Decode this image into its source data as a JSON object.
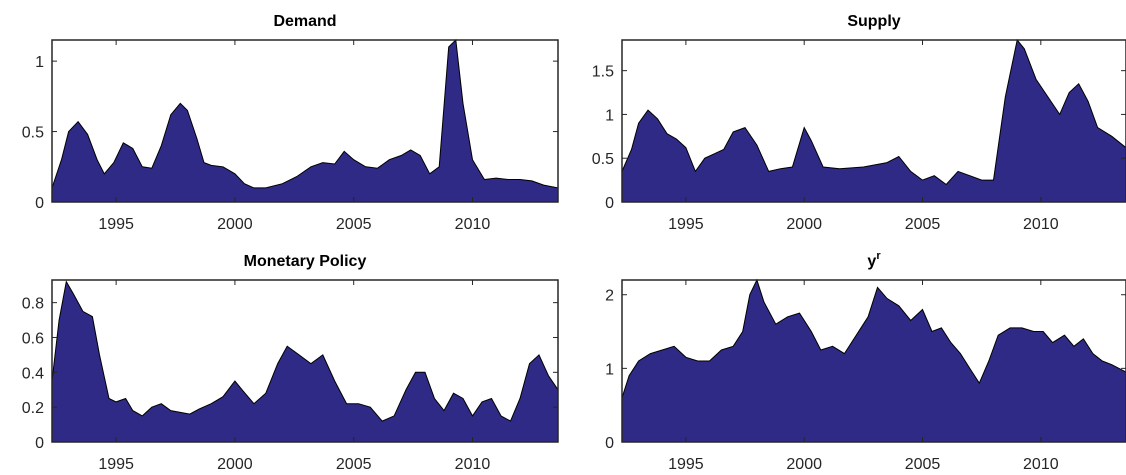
{
  "colors": {
    "fill": "#2e2a86",
    "axis": "#262626",
    "background": "#ffffff"
  },
  "chart_data": [
    {
      "type": "area",
      "title": "Demand",
      "xlabel": "",
      "ylabel": "",
      "xlim": [
        1992.3,
        2013.6
      ],
      "ylim": [
        0,
        1.15
      ],
      "xticks": [
        1995,
        2000,
        2005,
        2010
      ],
      "yticks": [
        0,
        0.5,
        1
      ],
      "ytick_labels": [
        "0",
        "0.5",
        "1"
      ],
      "x": [
        1992.3,
        1992.7,
        1993.0,
        1993.4,
        1993.8,
        1994.2,
        1994.5,
        1994.9,
        1995.3,
        1995.7,
        1996.1,
        1996.5,
        1996.9,
        1997.3,
        1997.7,
        1998.0,
        1998.4,
        1998.7,
        1999.0,
        1999.5,
        2000.0,
        2000.4,
        2000.8,
        2001.3,
        2002.0,
        2002.6,
        2003.2,
        2003.7,
        2004.2,
        2004.6,
        2005.0,
        2005.5,
        2006.0,
        2006.5,
        2007.0,
        2007.4,
        2007.8,
        2008.2,
        2008.6,
        2009.0,
        2009.3,
        2009.6,
        2010.0,
        2010.5,
        2011.0,
        2011.5,
        2012.0,
        2012.5,
        2013.0,
        2013.6
      ],
      "y": [
        0.1,
        0.3,
        0.5,
        0.57,
        0.48,
        0.3,
        0.2,
        0.28,
        0.42,
        0.38,
        0.25,
        0.24,
        0.4,
        0.62,
        0.7,
        0.65,
        0.45,
        0.28,
        0.26,
        0.25,
        0.2,
        0.13,
        0.1,
        0.1,
        0.13,
        0.18,
        0.25,
        0.28,
        0.27,
        0.36,
        0.3,
        0.25,
        0.24,
        0.3,
        0.33,
        0.37,
        0.33,
        0.2,
        0.25,
        1.1,
        1.15,
        0.7,
        0.3,
        0.16,
        0.17,
        0.16,
        0.16,
        0.15,
        0.12,
        0.1
      ]
    },
    {
      "type": "area",
      "title": "Supply",
      "xlabel": "",
      "ylabel": "",
      "xlim": [
        1992.3,
        2013.6
      ],
      "ylim": [
        0,
        1.85
      ],
      "xticks": [
        1995,
        2000,
        2005,
        2010
      ],
      "yticks": [
        0,
        0.5,
        1,
        1.5
      ],
      "ytick_labels": [
        "0",
        "0.5",
        "1",
        "1.5"
      ],
      "x": [
        1992.3,
        1992.7,
        1993.0,
        1993.4,
        1993.8,
        1994.2,
        1994.6,
        1995.0,
        1995.4,
        1995.8,
        1996.2,
        1996.6,
        1997.0,
        1997.5,
        1998.0,
        1998.5,
        1999.0,
        1999.5,
        2000.0,
        2000.3,
        2000.8,
        2001.5,
        2002.5,
        2003.5,
        2004.0,
        2004.5,
        2005.0,
        2005.5,
        2006.0,
        2006.5,
        2007.0,
        2007.5,
        2008.0,
        2008.5,
        2009.0,
        2009.3,
        2009.8,
        2010.3,
        2010.8,
        2011.2,
        2011.6,
        2012.0,
        2012.4,
        2013.0,
        2013.6
      ],
      "y": [
        0.35,
        0.6,
        0.9,
        1.05,
        0.95,
        0.78,
        0.72,
        0.62,
        0.35,
        0.5,
        0.55,
        0.6,
        0.8,
        0.85,
        0.65,
        0.35,
        0.38,
        0.4,
        0.85,
        0.7,
        0.4,
        0.38,
        0.4,
        0.45,
        0.52,
        0.35,
        0.25,
        0.3,
        0.2,
        0.35,
        0.3,
        0.25,
        0.25,
        1.2,
        1.85,
        1.75,
        1.4,
        1.2,
        1.0,
        1.25,
        1.35,
        1.15,
        0.85,
        0.75,
        0.62
      ]
    },
    {
      "type": "area",
      "title": "Monetary Policy",
      "xlabel": "",
      "ylabel": "",
      "xlim": [
        1992.3,
        2013.6
      ],
      "ylim": [
        0,
        0.93
      ],
      "xticks": [
        1995,
        2000,
        2005,
        2010
      ],
      "yticks": [
        0,
        0.2,
        0.4,
        0.6,
        0.8
      ],
      "ytick_labels": [
        "0",
        "0.2",
        "0.4",
        "0.6",
        "0.8"
      ],
      "x": [
        1992.3,
        1992.6,
        1992.9,
        1993.2,
        1993.6,
        1994.0,
        1994.3,
        1994.7,
        1995.0,
        1995.4,
        1995.7,
        1996.1,
        1996.5,
        1996.9,
        1997.3,
        1997.7,
        1998.1,
        1998.5,
        1999.0,
        1999.5,
        2000.0,
        2000.3,
        2000.8,
        2001.3,
        2001.8,
        2002.2,
        2002.7,
        2003.2,
        2003.7,
        2004.2,
        2004.7,
        2005.2,
        2005.7,
        2006.2,
        2006.7,
        2007.2,
        2007.6,
        2008.0,
        2008.4,
        2008.8,
        2009.2,
        2009.6,
        2010.0,
        2010.4,
        2010.8,
        2011.2,
        2011.6,
        2012.0,
        2012.4,
        2012.8,
        2013.2,
        2013.6
      ],
      "y": [
        0.35,
        0.7,
        0.92,
        0.85,
        0.75,
        0.72,
        0.5,
        0.25,
        0.23,
        0.25,
        0.18,
        0.15,
        0.2,
        0.22,
        0.18,
        0.17,
        0.16,
        0.19,
        0.22,
        0.26,
        0.35,
        0.3,
        0.22,
        0.28,
        0.45,
        0.55,
        0.5,
        0.45,
        0.5,
        0.35,
        0.22,
        0.22,
        0.2,
        0.12,
        0.15,
        0.3,
        0.4,
        0.4,
        0.25,
        0.18,
        0.28,
        0.25,
        0.15,
        0.23,
        0.25,
        0.15,
        0.12,
        0.25,
        0.45,
        0.5,
        0.38,
        0.3
      ]
    },
    {
      "type": "area",
      "title": "y",
      "title_superscript": "r",
      "xlabel": "",
      "ylabel": "",
      "xlim": [
        1992.3,
        2013.6
      ],
      "ylim": [
        0,
        2.2
      ],
      "xticks": [
        1995,
        2000,
        2005,
        2010
      ],
      "yticks": [
        0,
        1,
        2
      ],
      "ytick_labels": [
        "0",
        "1",
        "2"
      ],
      "x": [
        1992.3,
        1992.6,
        1993.0,
        1993.5,
        1994.0,
        1994.5,
        1995.0,
        1995.5,
        1996.0,
        1996.5,
        1997.0,
        1997.4,
        1997.7,
        1998.0,
        1998.3,
        1998.8,
        1999.3,
        1999.8,
        2000.3,
        2000.7,
        2001.2,
        2001.7,
        2002.2,
        2002.7,
        2003.1,
        2003.5,
        2004.0,
        2004.5,
        2005.0,
        2005.4,
        2005.8,
        2006.2,
        2006.6,
        2007.0,
        2007.4,
        2007.8,
        2008.2,
        2008.7,
        2009.2,
        2009.7,
        2010.1,
        2010.5,
        2011.0,
        2011.4,
        2011.8,
        2012.2,
        2012.6,
        2013.0,
        2013.6
      ],
      "y": [
        0.6,
        0.9,
        1.1,
        1.2,
        1.25,
        1.3,
        1.15,
        1.1,
        1.1,
        1.25,
        1.3,
        1.5,
        2.0,
        2.2,
        1.9,
        1.6,
        1.7,
        1.75,
        1.5,
        1.25,
        1.3,
        1.2,
        1.45,
        1.7,
        2.1,
        1.95,
        1.85,
        1.65,
        1.8,
        1.5,
        1.55,
        1.35,
        1.2,
        1.0,
        0.8,
        1.1,
        1.45,
        1.55,
        1.55,
        1.5,
        1.5,
        1.35,
        1.45,
        1.3,
        1.4,
        1.2,
        1.1,
        1.05,
        0.95
      ]
    }
  ]
}
